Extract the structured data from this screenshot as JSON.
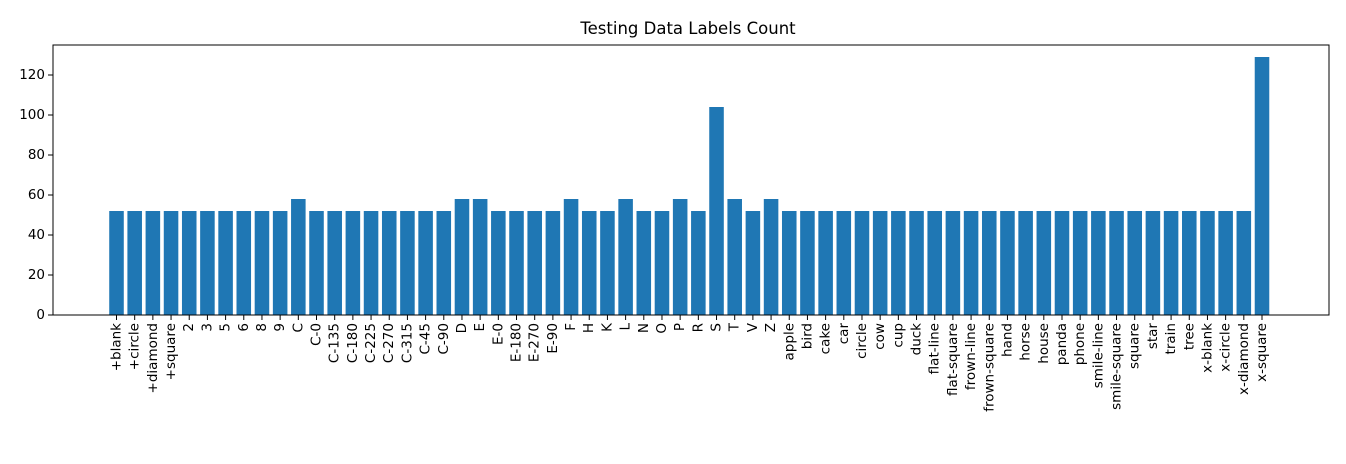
{
  "chart_data": {
    "type": "bar",
    "title": "Testing Data Labels Count",
    "xlabel": "",
    "ylabel": "",
    "ylim": [
      0,
      135
    ],
    "yticks": [
      0,
      20,
      40,
      60,
      80,
      100,
      120
    ],
    "grid": false,
    "bar_color": "#1f77b4",
    "categories": [
      "+blank",
      "+circle",
      "+diamond",
      "+square",
      "2",
      "3",
      "5",
      "6",
      "8",
      "9",
      "C",
      "C-0",
      "C-135",
      "C-180",
      "C-225",
      "C-270",
      "C-315",
      "C-45",
      "C-90",
      "D",
      "E",
      "E-0",
      "E-180",
      "E-270",
      "E-90",
      "F",
      "H",
      "K",
      "L",
      "N",
      "O",
      "P",
      "R",
      "S",
      "T",
      "V",
      "Z",
      "apple",
      "bird",
      "cake",
      "car",
      "circle",
      "cow",
      "cup",
      "duck",
      "flat-line",
      "flat-square",
      "frown-line",
      "frown-square",
      "hand",
      "horse",
      "house",
      "panda",
      "phone",
      "smile-line",
      "smile-square",
      "square",
      "star",
      "train",
      "tree",
      "x-blank",
      "x-circle",
      "x-diamond",
      "x-square"
    ],
    "values": [
      52,
      52,
      52,
      52,
      52,
      52,
      52,
      52,
      52,
      52,
      58,
      52,
      52,
      52,
      52,
      52,
      52,
      52,
      52,
      58,
      58,
      52,
      52,
      52,
      52,
      58,
      52,
      52,
      58,
      52,
      52,
      58,
      52,
      104,
      58,
      52,
      58,
      52,
      52,
      52,
      52,
      52,
      52,
      52,
      52,
      52,
      52,
      52,
      52,
      52,
      52,
      52,
      52,
      52,
      52,
      52,
      52,
      52,
      52,
      52,
      52,
      52,
      52,
      129
    ]
  }
}
